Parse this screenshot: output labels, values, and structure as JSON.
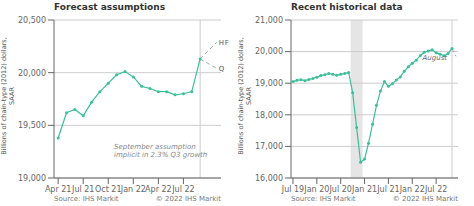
{
  "chart_data": [
    {
      "type": "line",
      "title": "Forecast assumptions",
      "y_label": "Billions of chain-type (2012) dollars,\nSAAR",
      "categories": [
        "Apr 21",
        null,
        null,
        "Jul 21",
        null,
        null,
        "Oct 21",
        null,
        null,
        "Jan 22",
        null,
        null,
        "Apr 22",
        null,
        null,
        "Jul 22",
        null,
        null,
        null,
        null
      ],
      "series": [
        {
          "color": "#3bbf9a",
          "marker": "circle",
          "line_style": "solid",
          "values": [
            19380,
            19620,
            19650,
            19590,
            19720,
            19820,
            19900,
            19980,
            20010,
            19960,
            19870,
            19850,
            19820,
            19820,
            19790,
            19800,
            19820,
            20130,
            null,
            null
          ]
        },
        {
          "color": "#aaaaaa",
          "marker": "none",
          "line_style": "dashed",
          "annotations": [
            "H",
            "F"
          ],
          "values": [
            null,
            null,
            null,
            null,
            null,
            null,
            null,
            null,
            null,
            null,
            null,
            null,
            null,
            null,
            null,
            null,
            null,
            20130,
            null,
            20290
          ]
        },
        {
          "color": "#aaaaaa",
          "marker": "none",
          "line_style": "dashed",
          "annotations": [
            "Q"
          ],
          "values": [
            null,
            null,
            null,
            null,
            null,
            null,
            null,
            null,
            null,
            null,
            null,
            null,
            null,
            null,
            null,
            null,
            null,
            20130,
            null,
            20040
          ]
        }
      ],
      "ylim": [
        19000,
        20500
      ],
      "yticks": [
        {
          "value": 19000,
          "label": "19,000"
        },
        {
          "value": 19500,
          "label": "19,500"
        },
        {
          "value": 20000,
          "label": "20,000"
        },
        {
          "value": 20500,
          "label": "20,500"
        }
      ],
      "grid": true,
      "annotations": [
        "September assumption\nimplicit in 2.3% Q3 growth"
      ],
      "source": "Source: IHS Markit",
      "copyright": "© 2022 IHS Markit"
    },
    {
      "type": "line",
      "title": "Recent historical data",
      "y_label": "Billions of chain-type (2012) dollars,\nSAAR",
      "categories": [
        "Jul 19",
        null,
        null,
        null,
        null,
        null,
        "Jan 20",
        null,
        null,
        null,
        null,
        null,
        "Jul 20",
        null,
        null,
        null,
        null,
        null,
        "Jan 21",
        null,
        null,
        null,
        null,
        null,
        "Jul 21",
        null,
        null,
        null,
        null,
        null,
        "Jan 22",
        null,
        null,
        null,
        null,
        null,
        "Jul 22",
        null,
        null,
        null,
        null,
        null
      ],
      "series": [
        {
          "color": "#3bbf9a",
          "marker": "circle",
          "line_style": "solid",
          "annotations": [
            "August"
          ],
          "values": [
            19050,
            19090,
            19110,
            19080,
            19120,
            19150,
            19190,
            19240,
            19270,
            19310,
            19280,
            19250,
            19280,
            19310,
            19340,
            18700,
            17600,
            16500,
            16600,
            17100,
            17700,
            18300,
            18750,
            19050,
            18900,
            18980,
            19100,
            19200,
            19380,
            19520,
            19630,
            19730,
            19870,
            19980,
            20020,
            20060,
            19960,
            19920,
            19870,
            19940,
            20100,
            null
          ]
        },
        {
          "color": "#aaaaaa",
          "marker": "none",
          "line_style": "dashed",
          "values": [
            null,
            null,
            null,
            null,
            null,
            null,
            null,
            null,
            null,
            null,
            null,
            null,
            null,
            null,
            null,
            null,
            null,
            null,
            null,
            null,
            null,
            null,
            null,
            null,
            null,
            null,
            null,
            null,
            null,
            null,
            null,
            null,
            null,
            null,
            null,
            null,
            null,
            null,
            null,
            null,
            20100,
            19850
          ]
        }
      ],
      "ylim": [
        16000,
        21000
      ],
      "yticks": [
        {
          "value": 16000,
          "label": "16,000"
        },
        {
          "value": 17000,
          "label": "17,000"
        },
        {
          "value": 18000,
          "label": "18,000"
        },
        {
          "value": 19000,
          "label": "19,000"
        },
        {
          "value": 20000,
          "label": "20,000"
        },
        {
          "value": 21000,
          "label": "21,000"
        }
      ],
      "grid": true,
      "shade": [
        14.5,
        17.5
      ],
      "source": "Source: IHS Markit",
      "copyright": "© 2022 IHS Markit"
    }
  ]
}
